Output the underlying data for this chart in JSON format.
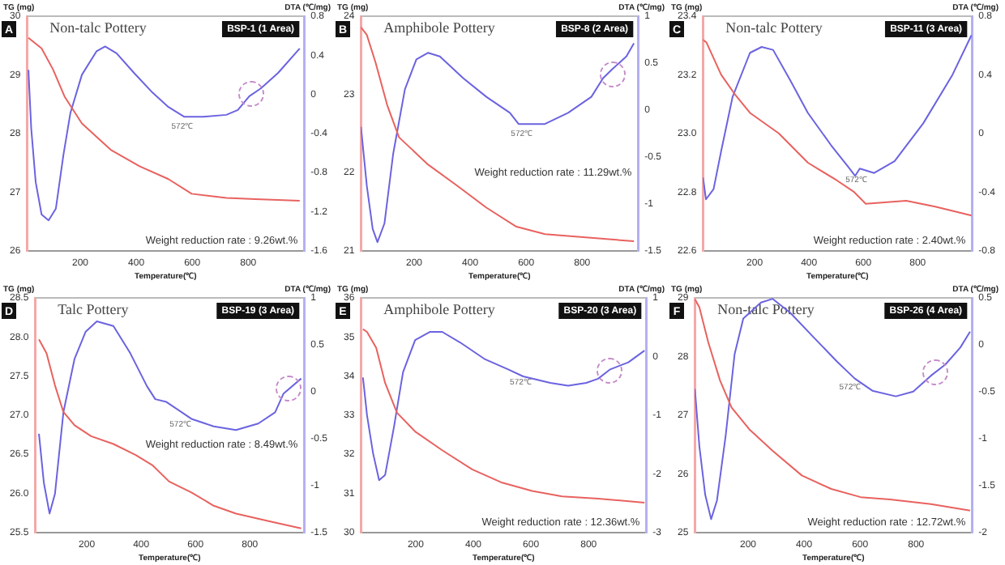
{
  "chart_data": [
    {
      "type": "line",
      "title": "Non-talc Pottery",
      "subtitle": "BSP-1 (1 Area)",
      "xlabel": "Temperature(℃)",
      "ylabel": "TG (mg)",
      "y2label": "DTA (℃/mg)",
      "annotations": [
        "A",
        "Weight reduction rate : 9.26wt.%",
        "572℃"
      ],
      "xlim": [
        10,
        1000
      ],
      "xticks": [
        200,
        400,
        600,
        800
      ],
      "ylim": [
        26,
        30
      ],
      "yticks": [
        26,
        27,
        28,
        29,
        30
      ],
      "y2lim": [
        -1.6,
        0.8
      ],
      "y2ticks": [
        -1.6,
        -1.2,
        -0.8,
        -0.4,
        0,
        0.4,
        0.8
      ],
      "series": [
        {
          "color": "#e8625f",
          "x": [
            15,
            62,
            103,
            144,
            206,
            309,
            412,
            515,
            598,
            722,
            825,
            984
          ],
          "values": [
            29.63,
            29.45,
            29.09,
            28.63,
            28.17,
            27.72,
            27.44,
            27.22,
            26.97,
            26.9,
            26.88,
            26.85
          ]
        },
        {
          "color": "#6b63e0",
          "axis": "y2",
          "x": [
            15,
            25,
            41,
            62,
            87,
            113,
            140,
            165,
            206,
            258,
            289,
            330,
            392,
            454,
            515,
            572,
            639,
            722,
            763,
            804,
            845,
            907,
            984
          ],
          "values": [
            0.25,
            -0.35,
            -0.9,
            -1.23,
            -1.29,
            -1.17,
            -0.62,
            -0.19,
            0.2,
            0.44,
            0.49,
            0.42,
            0.22,
            0.03,
            -0.13,
            -0.23,
            -0.23,
            -0.21,
            -0.16,
            -0.02,
            0.06,
            0.22,
            0.47
          ]
        }
      ]
    },
    {
      "type": "line",
      "title": "Amphibole Pottery",
      "subtitle": "BSP-8 (2 Area)",
      "xlabel": "Temperature(℃)",
      "ylabel": "TG (mg)",
      "y2label": "DTA (℃/mg)",
      "annotations": [
        "B",
        "Weight reduction rate : 11.29wt.%",
        "572℃"
      ],
      "xlim": [
        10,
        1000
      ],
      "xticks": [
        200,
        400,
        600,
        800
      ],
      "ylim": [
        21,
        24
      ],
      "yticks": [
        21,
        22,
        23,
        24
      ],
      "y2lim": [
        -1.5,
        1
      ],
      "y2ticks": [
        -1.5,
        -1,
        -0.5,
        0,
        0.5,
        1
      ],
      "series": [
        {
          "color": "#e8625f",
          "x": [
            10,
            31,
            62,
            104,
            146,
            250,
            354,
            458,
            563,
            667,
            813,
            985
          ],
          "values": [
            23.86,
            23.76,
            23.41,
            22.86,
            22.45,
            22.1,
            21.83,
            21.55,
            21.31,
            21.21,
            21.17,
            21.12
          ]
        },
        {
          "color": "#6b63e0",
          "axis": "y2",
          "x": [
            10,
            31,
            52,
            69,
            94,
            125,
            167,
            208,
            250,
            292,
            375,
            458,
            542,
            573,
            667,
            750,
            833,
            875,
            906,
            958,
            985
          ],
          "values": [
            -0.18,
            -0.81,
            -1.27,
            -1.41,
            -1.21,
            -0.47,
            0.22,
            0.54,
            0.61,
            0.57,
            0.34,
            0.14,
            -0.03,
            -0.15,
            -0.15,
            -0.03,
            0.14,
            0.34,
            0.43,
            0.57,
            0.71
          ]
        }
      ]
    },
    {
      "type": "line",
      "title": "Non-talc Pottery",
      "subtitle": "BSP-11 (3 Area)",
      "xlabel": "Temperature(℃)",
      "ylabel": "TG (mg)",
      "y2label": "DTA (℃/mg)",
      "annotations": [
        "C",
        "Weight reduction rate : 2.40wt.%",
        "572℃"
      ],
      "xlim": [
        10,
        1000
      ],
      "xticks": [
        200,
        400,
        600,
        800
      ],
      "ylim": [
        22.6,
        23.4
      ],
      "yticks": [
        22.6,
        22.8,
        {
          "value": 23,
          "label": "23.0"
        },
        23.2,
        23.4
      ],
      "y2lim": [
        -0.8,
        0.8
      ],
      "y2ticks": [
        -0.8,
        -0.4,
        0,
        0.4,
        0.8
      ],
      "series": [
        {
          "color": "#e8625f",
          "x": [
            10,
            23,
            77,
            130,
            183,
            289,
            396,
            502,
            566,
            609,
            758,
            864,
            998
          ],
          "values": [
            23.32,
            23.31,
            23.2,
            23.13,
            23.07,
            23.0,
            22.9,
            22.84,
            22.8,
            22.76,
            22.77,
            22.75,
            22.72
          ]
        },
        {
          "color": "#6b63e0",
          "axis": "y2",
          "x": [
            10,
            21,
            49,
            77,
            119,
            183,
            226,
            268,
            332,
            396,
            481,
            545,
            570,
            587,
            640,
            715,
            821,
            928,
            998
          ],
          "values": [
            -0.3,
            -0.45,
            -0.38,
            -0.12,
            0.25,
            0.55,
            0.59,
            0.57,
            0.36,
            0.14,
            -0.08,
            -0.23,
            -0.29,
            -0.24,
            -0.27,
            -0.19,
            0.07,
            0.4,
            0.67
          ]
        }
      ]
    },
    {
      "type": "line",
      "title": "Talc Pottery",
      "subtitle": "BSP-19 (3 Area)",
      "xlabel": "Temperature(℃)",
      "ylabel": "TG (mg)",
      "y2label": "DTA (℃/mg)",
      "annotations": [
        "D",
        "Weight reduction rate : 8.49wt.%",
        "572℃"
      ],
      "xlim": [
        10,
        1000
      ],
      "xticks": [
        200,
        400,
        600,
        800
      ],
      "ylim": [
        25.5,
        28.5
      ],
      "yticks": [
        25.5,
        {
          "value": 26,
          "label": "26.0"
        },
        26.5,
        {
          "value": 27,
          "label": "27.0"
        },
        27.5,
        {
          "value": 28,
          "label": "28.0"
        },
        28.5
      ],
      "y2lim": [
        -1.5,
        1
      ],
      "y2ticks": [
        -1.5,
        -1,
        -0.5,
        0,
        0.5,
        1
      ],
      "series": [
        {
          "color": "#e8625f",
          "x": [
            24,
            52,
            83,
            114,
            155,
            216,
            298,
            380,
            441,
            503,
            585,
            667,
            749,
            872,
            989
          ],
          "values": [
            27.97,
            27.79,
            27.38,
            27.04,
            26.87,
            26.73,
            26.63,
            26.49,
            26.36,
            26.15,
            26.01,
            25.84,
            25.74,
            25.64,
            25.55
          ]
        },
        {
          "color": "#6b63e0",
          "axis": "y2",
          "x": [
            24,
            42,
            63,
            83,
            114,
            155,
            196,
            237,
            298,
            360,
            421,
            452,
            493,
            565,
            585,
            667,
            749,
            831,
            893,
            924,
            989
          ],
          "values": [
            -0.45,
            -0.97,
            -1.3,
            -1.09,
            -0.22,
            0.35,
            0.64,
            0.75,
            0.7,
            0.41,
            0.06,
            -0.08,
            -0.11,
            -0.25,
            -0.29,
            -0.37,
            -0.41,
            -0.34,
            -0.22,
            -0.02,
            0.14
          ]
        }
      ]
    },
    {
      "type": "line",
      "title": "Amphibole Pottery",
      "subtitle": "BSP-20 (3 Area)",
      "xlabel": "Temperature(℃)",
      "ylabel": "TG (mg)",
      "y2label": "DTA (℃/mg)",
      "annotations": [
        "E",
        "Weight reduction rate : 12.36wt.%",
        "572℃"
      ],
      "xlim": [
        10,
        1000
      ],
      "xticks": [
        200,
        400,
        600,
        800
      ],
      "ylim": [
        30,
        36
      ],
      "yticks": [
        30,
        31,
        32,
        33,
        34,
        35,
        36
      ],
      "y2lim": [
        -3,
        1
      ],
      "y2ticks": [
        -3,
        -2,
        -1,
        0,
        1
      ],
      "series": [
        {
          "color": "#e8625f",
          "x": [
            17,
            31,
            63,
            94,
            135,
            198,
            292,
            396,
            500,
            604,
            708,
            833,
            994
          ],
          "values": [
            35.2,
            35.13,
            34.72,
            33.82,
            33.06,
            32.58,
            32.1,
            31.61,
            31.27,
            31.06,
            30.92,
            30.86,
            30.76
          ]
        },
        {
          "color": "#6b63e0",
          "axis": "y2",
          "x": [
            17,
            31,
            52,
            73,
            94,
            125,
            156,
            198,
            250,
            292,
            354,
            438,
            521,
            573,
            667,
            729,
            792,
            833,
            875,
            938,
            994
          ],
          "values": [
            -0.36,
            -1.0,
            -1.65,
            -2.11,
            -2.02,
            -1.19,
            -0.27,
            0.28,
            0.42,
            0.42,
            0.24,
            -0.04,
            -0.22,
            -0.34,
            -0.45,
            -0.5,
            -0.45,
            -0.38,
            -0.22,
            -0.1,
            0.1
          ]
        }
      ]
    },
    {
      "type": "line",
      "title": "Non-talc Pottery",
      "subtitle": "BSP-26 (4 Area)",
      "xlabel": "Temperature(℃)",
      "ylabel": "TG (mg)",
      "y2label": "DTA (℃/mg)",
      "annotations": [
        "F",
        "Weight reduction rate : 12.72wt.%",
        "572℃"
      ],
      "xlim": [
        10,
        1000
      ],
      "xticks": [
        200,
        400,
        600,
        800
      ],
      "ylim": [
        25,
        29
      ],
      "yticks": [
        25,
        26,
        27,
        28,
        29
      ],
      "y2lim": [
        -2,
        0.5
      ],
      "y2ticks": [
        -2,
        -1.5,
        -1,
        -0.5,
        0,
        0.5
      ],
      "series": [
        {
          "color": "#e8625f",
          "x": [
            10,
            26,
            58,
            100,
            141,
            204,
            288,
            392,
            497,
            602,
            707,
            853,
            993
          ],
          "values": [
            28.98,
            28.84,
            28.24,
            27.59,
            27.13,
            26.76,
            26.39,
            25.97,
            25.74,
            25.6,
            25.56,
            25.48,
            25.37
          ]
        },
        {
          "color": "#6b63e0",
          "axis": "y2",
          "x": [
            10,
            26,
            47,
            68,
            89,
            120,
            152,
            183,
            246,
            288,
            351,
            434,
            518,
            581,
            644,
            728,
            790,
            853,
            905,
            958,
            993
          ],
          "values": [
            -0.47,
            -1.08,
            -1.6,
            -1.86,
            -1.66,
            -0.97,
            -0.1,
            0.28,
            0.45,
            0.49,
            0.34,
            0.08,
            -0.18,
            -0.36,
            -0.49,
            -0.55,
            -0.5,
            -0.33,
            -0.21,
            -0.03,
            0.14
          ]
        }
      ]
    }
  ]
}
